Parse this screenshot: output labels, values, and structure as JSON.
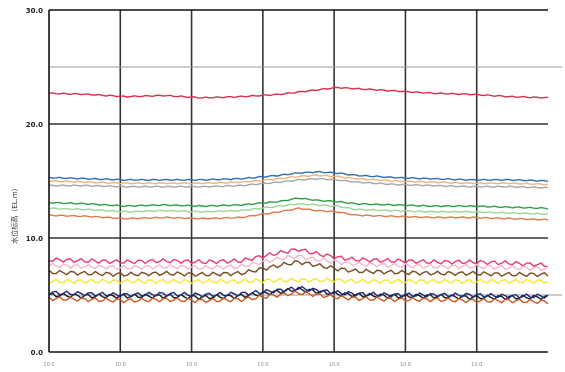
{
  "chart_data": {
    "type": "line",
    "ylabel": "水位标高（EL.m）",
    "ylim": [
      0,
      30
    ],
    "y_ticks": [
      "0.0",
      "10.0",
      "20.0",
      "30.0"
    ],
    "x_ticks": [
      "10.0",
      "10.0",
      "10.0",
      "10.0",
      "10.0",
      "10.0",
      "10.0"
    ],
    "grid": true,
    "reference_lines": [
      {
        "value": 25.0,
        "color": "#9a9a9a"
      },
      {
        "value": 5.0,
        "color": "#9a9a9a"
      }
    ],
    "x": [
      0,
      0.5,
      1,
      1.5,
      2,
      2.5,
      3,
      3.25,
      3.5,
      3.75,
      4,
      4.5,
      5,
      5.5,
      6,
      6.5
    ],
    "series": [
      {
        "color": "#d8304a",
        "values": [
          22.7,
          22.6,
          22.4,
          22.5,
          22.3,
          22.4,
          22.6,
          22.8,
          23.0,
          23.2,
          23.1,
          22.9,
          22.7,
          22.6,
          22.4,
          22.3
        ]
      },
      {
        "color": "#2f6fb5",
        "values": [
          15.3,
          15.2,
          15.1,
          15.1,
          15.1,
          15.2,
          15.5,
          15.7,
          15.8,
          15.7,
          15.5,
          15.3,
          15.2,
          15.1,
          15.1,
          15.0
        ]
      },
      {
        "color": "#f0b27a",
        "values": [
          15.0,
          14.9,
          14.8,
          14.8,
          14.8,
          14.9,
          15.2,
          15.4,
          15.5,
          15.4,
          15.2,
          15.0,
          14.9,
          14.8,
          14.8,
          14.7
        ]
      },
      {
        "color": "#a6a6a6",
        "values": [
          14.6,
          14.6,
          14.5,
          14.5,
          14.5,
          14.6,
          14.9,
          15.1,
          15.2,
          15.1,
          14.9,
          14.7,
          14.6,
          14.5,
          14.5,
          14.4
        ]
      },
      {
        "color": "#2e9e48",
        "values": [
          13.1,
          13.0,
          12.8,
          12.9,
          12.8,
          12.9,
          13.2,
          13.5,
          13.3,
          13.2,
          13.0,
          12.9,
          12.8,
          12.8,
          12.7,
          12.6
        ]
      },
      {
        "color": "#9dd59a",
        "values": [
          12.6,
          12.5,
          12.3,
          12.4,
          12.3,
          12.4,
          12.8,
          13.0,
          12.9,
          12.8,
          12.5,
          12.4,
          12.3,
          12.3,
          12.2,
          12.1
        ]
      },
      {
        "color": "#e07a48",
        "values": [
          12.0,
          11.9,
          11.7,
          11.8,
          11.7,
          11.8,
          12.3,
          12.6,
          12.4,
          12.3,
          12.0,
          11.9,
          11.8,
          11.8,
          11.7,
          11.6
        ]
      },
      {
        "color": "#e83a7a",
        "values": [
          8.1,
          8.0,
          7.9,
          8.0,
          7.9,
          8.0,
          8.7,
          9.0,
          8.6,
          8.3,
          8.1,
          8.0,
          7.9,
          7.9,
          7.8,
          7.6
        ]
      },
      {
        "color": "#f7b6c9",
        "values": [
          7.6,
          7.5,
          7.4,
          7.5,
          7.4,
          7.5,
          8.2,
          8.4,
          8.1,
          7.9,
          7.7,
          7.6,
          7.5,
          7.5,
          7.4,
          7.3
        ]
      },
      {
        "color": "#7a4a1e",
        "values": [
          7.0,
          6.9,
          6.8,
          6.9,
          6.8,
          6.9,
          7.6,
          7.9,
          7.6,
          7.3,
          7.1,
          7.0,
          6.9,
          6.9,
          6.8,
          6.8
        ]
      },
      {
        "color": "#f5e633",
        "values": [
          6.2,
          6.2,
          6.2,
          6.2,
          6.2,
          6.2,
          6.3,
          6.3,
          6.3,
          6.3,
          6.2,
          6.2,
          6.2,
          6.2,
          6.2,
          6.2
        ]
      },
      {
        "color": "#1a1a1a",
        "values": [
          5.0,
          4.9,
          4.9,
          4.9,
          4.8,
          4.9,
          5.3,
          5.5,
          5.3,
          5.1,
          5.0,
          4.9,
          4.9,
          4.8,
          4.8,
          4.8
        ]
      },
      {
        "color": "#c85a1e",
        "values": [
          4.7,
          4.6,
          4.5,
          4.6,
          4.5,
          4.6,
          5.0,
          5.2,
          5.0,
          4.8,
          4.7,
          4.6,
          4.6,
          4.5,
          4.5,
          4.4
        ]
      },
      {
        "color": "#1f2a7a",
        "values": [
          5.2,
          5.1,
          5.0,
          5.1,
          5.0,
          5.1,
          5.4,
          5.6,
          5.4,
          5.2,
          5.1,
          5.0,
          5.0,
          5.0,
          4.9,
          4.9
        ]
      }
    ]
  }
}
